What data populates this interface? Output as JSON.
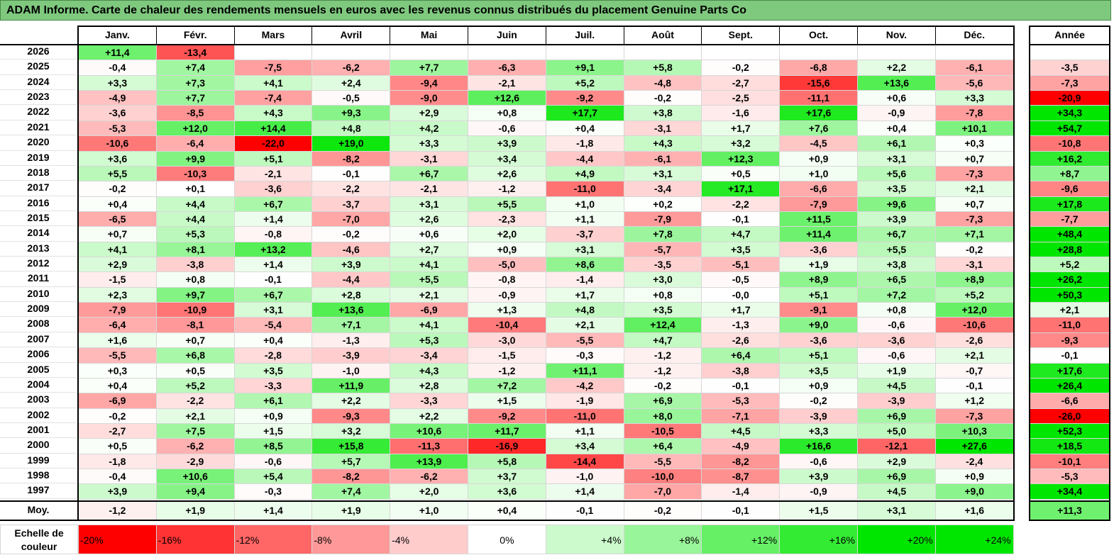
{
  "title": "ADAM Informe. Carte de chaleur des rendements mensuels en euros avec les revenus connus distribués du placement Genuine Parts Co",
  "chart_data": {
    "type": "heatmap",
    "months": [
      "Janv.",
      "Févr.",
      "Mars",
      "Avril",
      "Mai",
      "Juin",
      "Juil.",
      "Août",
      "Sept.",
      "Oct.",
      "Nov.",
      "Déc."
    ],
    "year_header": "Année",
    "avg_label": "Moy.",
    "rows": [
      {
        "year": "2026",
        "values": [
          "+11,4",
          "-13,4",
          "",
          "",
          "",
          "",
          "",
          "",
          "",
          "",
          "",
          ""
        ],
        "annual": ""
      },
      {
        "year": "2025",
        "values": [
          "-0,4",
          "+7,4",
          "-7,5",
          "-6,2",
          "+7,7",
          "-6,3",
          "+9,1",
          "+5,8",
          "-0,2",
          "-6,8",
          "+2,2",
          "-6,1"
        ],
        "annual": "-3,5"
      },
      {
        "year": "2024",
        "values": [
          "+3,3",
          "+7,3",
          "+4,1",
          "+2,4",
          "-9,4",
          "-2,1",
          "+5,2",
          "-4,8",
          "-2,7",
          "-15,6",
          "+13,6",
          "-5,6"
        ],
        "annual": "-7,3"
      },
      {
        "year": "2023",
        "values": [
          "-4,9",
          "+7,7",
          "-7,4",
          "-0,5",
          "-9,0",
          "+12,6",
          "-9,2",
          "-0,2",
          "-2,5",
          "-11,1",
          "+0,6",
          "+3,3"
        ],
        "annual": "-20,9"
      },
      {
        "year": "2022",
        "values": [
          "-3,6",
          "-8,5",
          "+4,3",
          "+9,3",
          "+2,9",
          "+0,8",
          "+17,7",
          "+3,8",
          "-1,6",
          "+17,6",
          "-0,9",
          "-7,8"
        ],
        "annual": "+34,3"
      },
      {
        "year": "2021",
        "values": [
          "-5,3",
          "+12,0",
          "+14,4",
          "+4,8",
          "+4,2",
          "-0,6",
          "+0,4",
          "-3,1",
          "+1,7",
          "+7,6",
          "+0,4",
          "+10,1"
        ],
        "annual": "+54,7"
      },
      {
        "year": "2020",
        "values": [
          "-10,6",
          "-6,4",
          "-22,0",
          "+19,0",
          "+3,3",
          "+3,9",
          "-1,8",
          "+4,3",
          "+3,2",
          "-4,5",
          "+6,1",
          "+0,3"
        ],
        "annual": "-10,8"
      },
      {
        "year": "2019",
        "values": [
          "+3,6",
          "+9,9",
          "+5,1",
          "-8,2",
          "-3,1",
          "+3,4",
          "-4,4",
          "-6,1",
          "+12,3",
          "+0,9",
          "+3,1",
          "+0,7"
        ],
        "annual": "+16,2"
      },
      {
        "year": "2018",
        "values": [
          "+5,5",
          "-10,3",
          "-2,1",
          "-0,1",
          "+6,7",
          "+2,6",
          "+4,9",
          "+3,1",
          "+0,5",
          "+1,0",
          "+5,6",
          "-7,3"
        ],
        "annual": "+8,7"
      },
      {
        "year": "2017",
        "values": [
          "-0,2",
          "+0,1",
          "-3,6",
          "-2,2",
          "-2,1",
          "-1,2",
          "-11,0",
          "-3,4",
          "+17,1",
          "-6,6",
          "+3,5",
          "+2,1"
        ],
        "annual": "-9,6"
      },
      {
        "year": "2016",
        "values": [
          "+0,4",
          "+4,4",
          "+6,7",
          "-3,7",
          "+3,1",
          "+5,5",
          "+1,0",
          "+0,2",
          "-2,2",
          "-7,9",
          "+9,6",
          "+0,7"
        ],
        "annual": "+17,8"
      },
      {
        "year": "2015",
        "values": [
          "-6,5",
          "+4,4",
          "+1,4",
          "-7,0",
          "+2,6",
          "-2,3",
          "+1,1",
          "-7,9",
          "-0,1",
          "+11,5",
          "+3,9",
          "-7,3"
        ],
        "annual": "-7,7"
      },
      {
        "year": "2014",
        "values": [
          "+0,7",
          "+5,3",
          "-0,8",
          "-0,2",
          "+0,6",
          "+2,0",
          "-3,7",
          "+7,8",
          "+4,7",
          "+11,4",
          "+6,7",
          "+7,1"
        ],
        "annual": "+48,4"
      },
      {
        "year": "2013",
        "values": [
          "+4,1",
          "+8,1",
          "+13,2",
          "-4,6",
          "+2,7",
          "+0,9",
          "+3,1",
          "-5,7",
          "+3,5",
          "-3,6",
          "+5,5",
          "-0,2"
        ],
        "annual": "+28,8"
      },
      {
        "year": "2012",
        "values": [
          "+2,9",
          "-3,8",
          "+1,4",
          "+3,9",
          "+4,1",
          "-5,0",
          "+8,6",
          "-3,5",
          "-5,1",
          "+1,9",
          "+3,8",
          "-3,1"
        ],
        "annual": "+5,2"
      },
      {
        "year": "2011",
        "values": [
          "-1,5",
          "+0,8",
          "-0,1",
          "-4,4",
          "+5,5",
          "-0,8",
          "-1,4",
          "+3,0",
          "-0,5",
          "+8,9",
          "+6,5",
          "+8,9"
        ],
        "annual": "+26,2"
      },
      {
        "year": "2010",
        "values": [
          "+2,3",
          "+9,7",
          "+6,7",
          "+2,8",
          "+2,1",
          "-0,9",
          "+1,7",
          "+0,8",
          "-0,0",
          "+5,1",
          "+7,2",
          "+5,2"
        ],
        "annual": "+50,3"
      },
      {
        "year": "2009",
        "values": [
          "-7,9",
          "-10,9",
          "+3,1",
          "+13,6",
          "-6,9",
          "+1,3",
          "+4,8",
          "+3,5",
          "+1,7",
          "-9,1",
          "+0,8",
          "+12,0"
        ],
        "annual": "+2,1"
      },
      {
        "year": "2008",
        "values": [
          "-6,4",
          "-8,1",
          "-5,4",
          "+7,1",
          "+4,1",
          "-10,4",
          "+2,1",
          "+12,4",
          "-1,3",
          "+9,0",
          "-0,6",
          "-10,6"
        ],
        "annual": "-11,0"
      },
      {
        "year": "2007",
        "values": [
          "+1,6",
          "+0,7",
          "+0,4",
          "-1,3",
          "+5,3",
          "-3,0",
          "-5,5",
          "+4,7",
          "-2,6",
          "-3,6",
          "-3,6",
          "-2,6"
        ],
        "annual": "-9,3"
      },
      {
        "year": "2006",
        "values": [
          "-5,5",
          "+6,8",
          "-2,8",
          "-3,9",
          "-3,4",
          "-1,5",
          "-0,3",
          "-1,2",
          "+6,4",
          "+5,1",
          "-0,6",
          "+2,1"
        ],
        "annual": "-0,1"
      },
      {
        "year": "2005",
        "values": [
          "+0,3",
          "+0,5",
          "+3,5",
          "-1,0",
          "+4,3",
          "-1,2",
          "+11,1",
          "-1,2",
          "-3,8",
          "+3,5",
          "+1,9",
          "-0,7"
        ],
        "annual": "+17,6"
      },
      {
        "year": "2004",
        "values": [
          "+0,4",
          "+5,2",
          "-3,3",
          "+11,9",
          "+2,8",
          "+7,2",
          "-4,2",
          "-0,2",
          "-0,1",
          "+0,9",
          "+4,5",
          "-0,1"
        ],
        "annual": "+26,4"
      },
      {
        "year": "2003",
        "values": [
          "-6,9",
          "-2,2",
          "+6,1",
          "+2,2",
          "-3,3",
          "+1,5",
          "-1,9",
          "+6,9",
          "-5,3",
          "-0,2",
          "-3,9",
          "+1,2"
        ],
        "annual": "-6,6"
      },
      {
        "year": "2002",
        "values": [
          "-0,2",
          "+2,1",
          "+0,9",
          "-9,3",
          "+2,2",
          "-9,2",
          "-11,0",
          "+8,0",
          "-7,1",
          "-3,9",
          "+6,9",
          "-7,3"
        ],
        "annual": "-26,0"
      },
      {
        "year": "2001",
        "values": [
          "-2,7",
          "+7,5",
          "+1,5",
          "+3,2",
          "+10,6",
          "+11,7",
          "+1,1",
          "-10,5",
          "+4,5",
          "+3,3",
          "+5,0",
          "+10,3"
        ],
        "annual": "+52,3"
      },
      {
        "year": "2000",
        "values": [
          "+0,5",
          "-6,2",
          "+8,5",
          "+15,8",
          "-11,3",
          "-16,9",
          "+3,4",
          "+6,4",
          "-4,9",
          "+16,6",
          "-12,1",
          "+27,6"
        ],
        "annual": "+18,5"
      },
      {
        "year": "1999",
        "values": [
          "-1,8",
          "-2,9",
          "-0,6",
          "+5,7",
          "+13,9",
          "+5,8",
          "-14,4",
          "-5,5",
          "-8,2",
          "-0,6",
          "+2,9",
          "-2,4"
        ],
        "annual": "-10,1"
      },
      {
        "year": "1998",
        "values": [
          "-0,4",
          "+10,6",
          "+5,4",
          "-8,2",
          "-6,2",
          "+3,7",
          "-1,0",
          "-10,0",
          "-8,7",
          "+3,9",
          "+6,9",
          "+0,9"
        ],
        "annual": "-5,3"
      },
      {
        "year": "1997",
        "values": [
          "+3,9",
          "+9,4",
          "-0,3",
          "+7,4",
          "+2,0",
          "+3,6",
          "+1,4",
          "-7,0",
          "-1,4",
          "-0,9",
          "+4,5",
          "+9,0"
        ],
        "annual": "+34,4"
      }
    ],
    "averages": [
      "-1,2",
      "+1,9",
      "+1,4",
      "+1,9",
      "+1,0",
      "+0,4",
      "-0,1",
      "-0,2",
      "-0,1",
      "+1,5",
      "+3,1",
      "+1,6"
    ],
    "average_annual": "+11,3",
    "scale_label": "Echelle de couleur",
    "scale": [
      "-20%",
      "-16%",
      "-12%",
      "-8%",
      "-4%",
      "0%",
      "+4%",
      "+8%",
      "+12%",
      "+16%",
      "+20%",
      "+24%"
    ],
    "colors": {
      "negative_max": "#ff0000",
      "neutral": "#ffffff",
      "positive_max": "#00e600",
      "title_bg": "#7fc97f"
    }
  }
}
